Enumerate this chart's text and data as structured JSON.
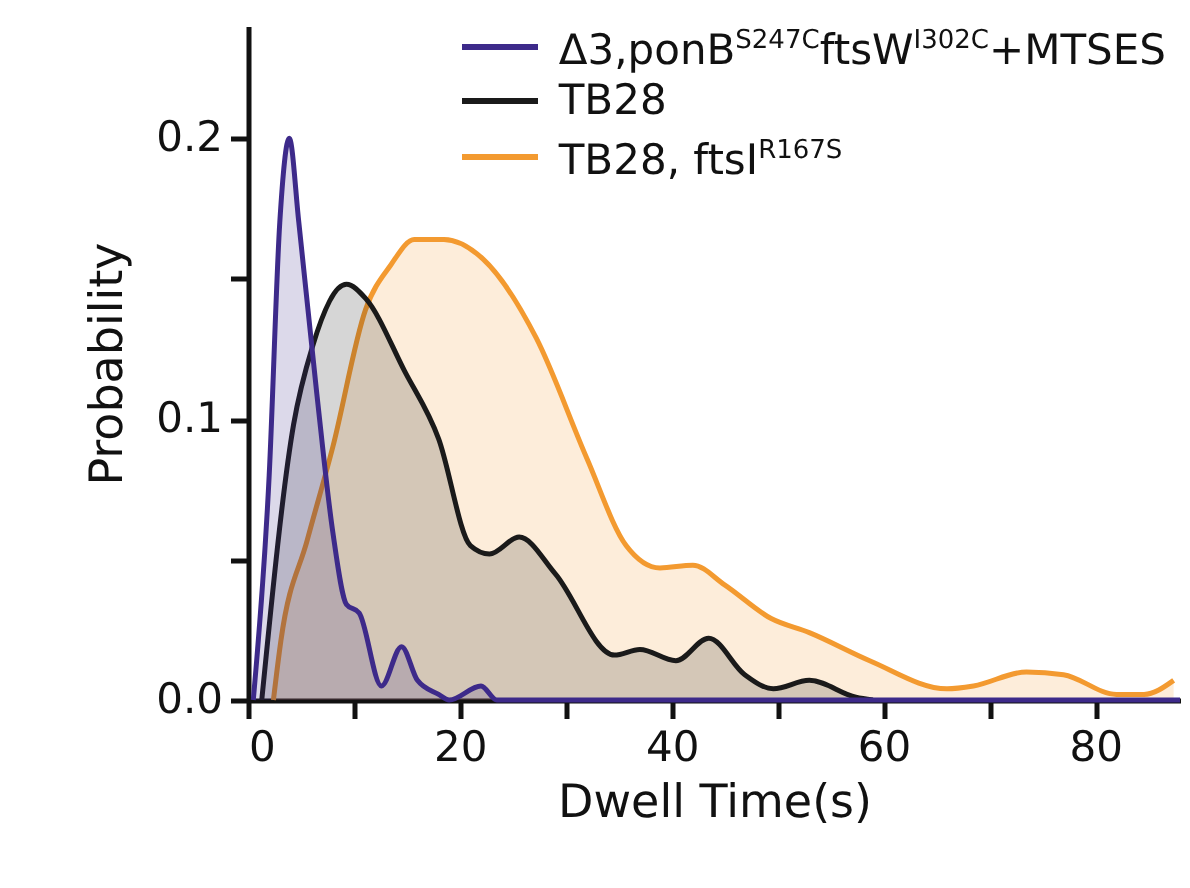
{
  "chart_data": {
    "type": "area",
    "xlabel": "Dwell Time(s)",
    "ylabel": "Probability",
    "xlim": [
      0,
      88
    ],
    "ylim": [
      0,
      0.24
    ],
    "xticks": [
      0,
      {
        "value": 10,
        "label": null
      },
      20,
      {
        "value": 30,
        "label": null
      },
      40,
      {
        "value": 50,
        "label": null
      },
      60,
      {
        "value": 70,
        "label": null
      },
      80
    ],
    "yticks": [
      {
        "value": 0,
        "label": "0.0"
      },
      {
        "value": 0.05,
        "label": null
      },
      {
        "value": 0.1,
        "label": "0.1"
      },
      {
        "value": 0.15,
        "label": null
      },
      {
        "value": 0.2,
        "label": "0.2"
      }
    ],
    "legend": "top right",
    "grid": false,
    "series": [
      {
        "name": "Δ3,ponB$^{S247C}$ftsW$^{I302C}$+MTSES",
        "color": "#3d2a8a",
        "x": [
          0.5,
          2,
          3,
          3.9,
          4.8,
          6.5,
          8,
          9.3,
          10.5,
          12.6,
          14.5,
          16,
          18,
          19,
          22,
          23.5,
          88
        ],
        "values": [
          0,
          0.08,
          0.17,
          0.2,
          0.17,
          0.109,
          0.06,
          0.034,
          0.031,
          0.005,
          0.019,
          0.007,
          0.002,
          0,
          0.005,
          0,
          0
        ]
      },
      {
        "name": "TB28",
        "color": "#1a1a1a",
        "x": [
          1.3,
          4.3,
          6.1,
          9.3,
          11.1,
          14.8,
          18,
          21,
          22.8,
          25.6,
          29,
          34.6,
          37,
          40.4,
          43.5,
          46.9,
          49.6,
          53,
          57.4,
          59
        ],
        "values": [
          0,
          0.098,
          0.126,
          0.148,
          0.143,
          0.117,
          0.093,
          0.055,
          0.052,
          0.058,
          0.045,
          0.016,
          0.018,
          0.014,
          0.022,
          0.009,
          0.004,
          0.007,
          0.001,
          0
        ]
      },
      {
        "name": "TB28, ftsI$^{R167S}$",
        "color": "#f39a30",
        "x": [
          2.4,
          3.1,
          5.6,
          8,
          11.1,
          13.5,
          15.7,
          18.5,
          22.2,
          27.2,
          32,
          35.7,
          38.9,
          42,
          45,
          49.4,
          53,
          58.7,
          66,
          68.5,
          73.5,
          77,
          82,
          84.6,
          87.4
        ],
        "values": [
          0,
          0.021,
          0.057,
          0.09,
          0.139,
          0.155,
          0.164,
          0.164,
          0.157,
          0.129,
          0.086,
          0.055,
          0.047,
          0.048,
          0.041,
          0.029,
          0.024,
          0.014,
          0.004,
          0.005,
          0.01,
          0.009,
          0.002,
          0.002,
          0.007
        ]
      }
    ]
  }
}
